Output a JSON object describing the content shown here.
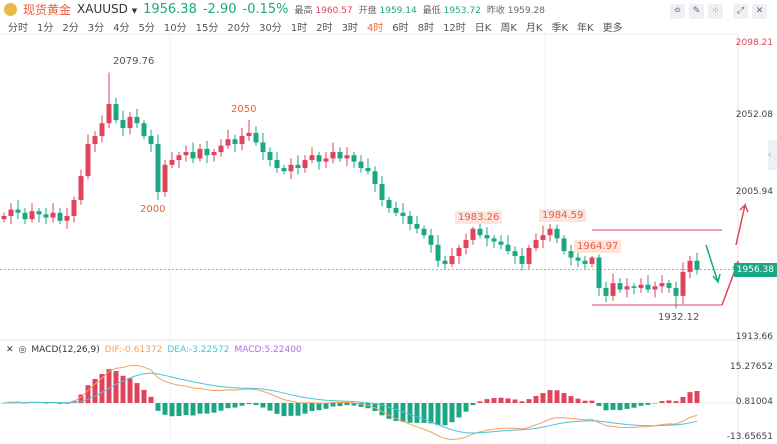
{
  "header": {
    "name": "现货黄金",
    "symbol": "XAUUSD",
    "price": "1956.38",
    "change": "-2.90",
    "change_pct": "-0.15%",
    "high_label": "最高",
    "high": "1960.57",
    "open_label": "开盘",
    "open": "1959.14",
    "low_label": "最低",
    "low": "1953.72",
    "prev_label": "昨收",
    "prev": "1959.28"
  },
  "tabs": [
    "分时",
    "1分",
    "2分",
    "3分",
    "4分",
    "5分",
    "10分",
    "15分",
    "20分",
    "30分",
    "1时",
    "2时",
    "3时",
    "4时",
    "6时",
    "8时",
    "12时",
    "日K",
    "周K",
    "月K",
    "季K",
    "年K",
    "更多"
  ],
  "active_tab": "4时",
  "tools": [
    "indicator-icon",
    "draw-icon",
    "compare-icon",
    "fullscreen-icon",
    "close-icon"
  ],
  "price_axis": [
    "2098.21",
    "2052.08",
    "2005.94",
    "1913.66"
  ],
  "current_price_label": "1956.38",
  "macd_axis": [
    "15.27652",
    "0.81004",
    "-13.65651"
  ],
  "macd": {
    "title": "MACD(12,26,9)",
    "dif": "DIF:-0.61372",
    "dea": "DEA:-3.22572",
    "macd": "MACD:5.22400"
  },
  "annotations": [
    {
      "text": "2079.76",
      "i": 15,
      "pos": "high",
      "style": "dark"
    },
    {
      "text": "2000",
      "i": 22,
      "pos": "low",
      "style": "plain"
    },
    {
      "text": "2050",
      "i": 35,
      "pos": "high",
      "style": "plain"
    },
    {
      "text": "1983.26",
      "i": 67,
      "pos": "high",
      "style": "box"
    },
    {
      "text": "1984.59",
      "i": 79,
      "pos": "high",
      "style": "box"
    },
    {
      "text": "1964.97",
      "i": 84,
      "pos": "high",
      "style": "box"
    },
    {
      "text": "1932.12",
      "i": 96,
      "pos": "low",
      "style": "dark"
    }
  ],
  "colors": {
    "up": "#e0435c",
    "down": "#1ba784",
    "dif": "#f0a35c",
    "dea": "#4fc3d9"
  },
  "closes": [
    1990,
    1994,
    1992,
    1988,
    1993,
    1991,
    1989,
    1992,
    1987,
    1990,
    2000,
    2015,
    2035,
    2040,
    2048,
    2060,
    2050,
    2045,
    2052,
    2048,
    2040,
    2035,
    2005,
    2022,
    2025,
    2028,
    2030,
    2026,
    2032,
    2028,
    2030,
    2034,
    2038,
    2035,
    2040,
    2042,
    2036,
    2030,
    2025,
    2020,
    2018,
    2022,
    2020,
    2025,
    2028,
    2024,
    2026,
    2030,
    2026,
    2028,
    2024,
    2020,
    2018,
    2010,
    2000,
    1995,
    1992,
    1990,
    1985,
    1982,
    1978,
    1972,
    1962,
    1960,
    1965,
    1970,
    1975,
    1982,
    1978,
    1976,
    1974,
    1972,
    1968,
    1965,
    1960,
    1970,
    1975,
    1978,
    1982,
    1976,
    1968,
    1964,
    1962,
    1960,
    1964,
    1945,
    1940,
    1948,
    1944,
    1946,
    1945,
    1947,
    1944,
    1946,
    1948,
    1945,
    1940,
    1955,
    1962,
    1956.38
  ],
  "special_highs": {
    "15": 2079.76,
    "35": 2050,
    "67": 1983.26,
    "79": 1984.59,
    "84": 1964.97
  },
  "special_lows": {
    "22": 2000,
    "96": 1932.12
  }
}
